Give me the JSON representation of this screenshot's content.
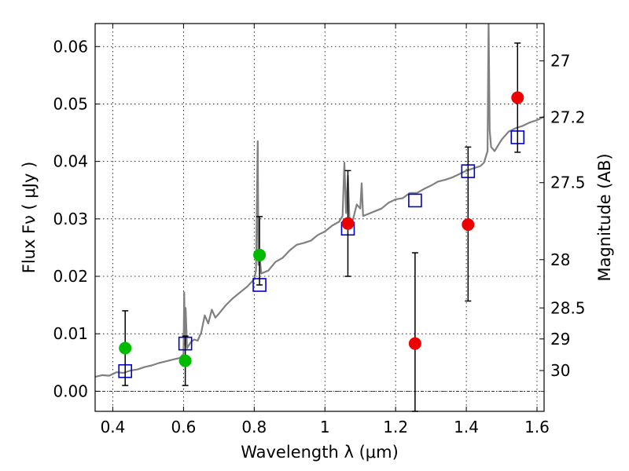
{
  "chart_data": {
    "type": "scatter",
    "title": "",
    "xlabel": "Wavelength  λ (μm)",
    "ylabel": "Flux  Fν  ( μJy )",
    "ylabel_right": "Magnitude (AB)",
    "xlim": [
      0.35,
      1.62
    ],
    "ylim": [
      -0.0035,
      0.064
    ],
    "grid": true,
    "x_ticks": [
      0.4,
      0.6,
      0.8,
      1.0,
      1.2,
      1.4,
      1.6
    ],
    "x_tick_labels": [
      "0.4",
      "0.6",
      "0.8",
      "1",
      "1.2",
      "1.4",
      "1.6"
    ],
    "y_ticks": [
      0.0,
      0.01,
      0.02,
      0.03,
      0.04,
      0.05,
      0.06
    ],
    "y_tick_labels": [
      "0.00",
      "0.01",
      "0.02",
      "0.03",
      "0.04",
      "0.05",
      "0.06"
    ],
    "right_ticks": [
      {
        "flux": 0.0575,
        "label": "27"
      },
      {
        "flux": 0.0477,
        "label": "27.2"
      },
      {
        "flux": 0.0363,
        "label": "27.5"
      },
      {
        "flux": 0.0229,
        "label": "28"
      },
      {
        "flux": 0.0145,
        "label": "28.5"
      },
      {
        "flux": 0.0091,
        "label": "29"
      },
      {
        "flux": 0.0036,
        "label": "30"
      }
    ],
    "series": [
      {
        "kind": "line",
        "color": "#808080",
        "x": [
          0.35,
          0.37,
          0.39,
          0.41,
          0.43,
          0.45,
          0.47,
          0.49,
          0.51,
          0.53,
          0.55,
          0.57,
          0.59,
          0.6,
          0.602,
          0.604,
          0.606,
          0.61,
          0.62,
          0.63,
          0.64,
          0.65,
          0.66,
          0.67,
          0.68,
          0.69,
          0.7,
          0.72,
          0.74,
          0.76,
          0.78,
          0.8,
          0.805,
          0.81,
          0.812,
          0.815,
          0.82,
          0.84,
          0.86,
          0.88,
          0.9,
          0.92,
          0.94,
          0.96,
          0.98,
          1.0,
          1.02,
          1.04,
          1.05,
          1.055,
          1.06,
          1.065,
          1.07,
          1.08,
          1.09,
          1.1,
          1.104,
          1.108,
          1.12,
          1.14,
          1.16,
          1.18,
          1.2,
          1.22,
          1.24,
          1.26,
          1.28,
          1.3,
          1.32,
          1.34,
          1.36,
          1.38,
          1.4,
          1.42,
          1.44,
          1.45,
          1.46,
          1.463,
          1.466,
          1.47,
          1.48,
          1.5,
          1.52,
          1.54,
          1.56,
          1.58,
          1.6,
          1.62
        ],
        "y": [
          0.0025,
          0.0028,
          0.0027,
          0.0033,
          0.0032,
          0.0036,
          0.0038,
          0.0042,
          0.0045,
          0.0049,
          0.0052,
          0.0055,
          0.0058,
          0.0065,
          0.0172,
          0.008,
          0.0145,
          0.0075,
          0.0085,
          0.009,
          0.0088,
          0.0102,
          0.0132,
          0.0118,
          0.0142,
          0.0128,
          0.0135,
          0.015,
          0.0162,
          0.0172,
          0.0182,
          0.0195,
          0.021,
          0.0435,
          0.022,
          0.0235,
          0.0205,
          0.021,
          0.0225,
          0.0232,
          0.0245,
          0.0255,
          0.0258,
          0.0262,
          0.0272,
          0.0278,
          0.0288,
          0.0295,
          0.0305,
          0.0398,
          0.031,
          0.0375,
          0.029,
          0.03,
          0.0325,
          0.0318,
          0.0362,
          0.0305,
          0.0308,
          0.0313,
          0.0318,
          0.0328,
          0.0334,
          0.0336,
          0.0345,
          0.0345,
          0.0352,
          0.0358,
          0.0365,
          0.0368,
          0.0372,
          0.0378,
          0.0384,
          0.0388,
          0.0392,
          0.0398,
          0.0418,
          0.0645,
          0.0455,
          0.0425,
          0.0418,
          0.0438,
          0.0452,
          0.0458,
          0.0462,
          0.0468,
          0.0472,
          0.0478
        ]
      },
      {
        "kind": "squares",
        "color": "#0000cc",
        "x": [
          0.435,
          0.605,
          0.815,
          1.065,
          1.255,
          1.405,
          1.545
        ],
        "y": [
          0.0035,
          0.0083,
          0.0185,
          0.0283,
          0.0332,
          0.0383,
          0.0442
        ]
      },
      {
        "kind": "points",
        "color": "#00bb00",
        "x": [
          0.435,
          0.605,
          0.815
        ],
        "y": [
          0.0075,
          0.0053,
          0.0237
        ],
        "yerr_low": [
          0.0065,
          0.0043,
          0.0052
        ],
        "yerr_high": [
          0.0065,
          0.0043,
          0.0067
        ]
      },
      {
        "kind": "points",
        "color": "#ee0000",
        "x": [
          1.065,
          1.255,
          1.405,
          1.545
        ],
        "y": [
          0.0292,
          0.0083,
          0.029,
          0.0511
        ],
        "yerr_low": [
          0.0092,
          0.0118,
          0.0133,
          0.0095
        ],
        "yerr_high": [
          0.0092,
          0.0158,
          0.0135,
          0.0095
        ]
      }
    ]
  }
}
